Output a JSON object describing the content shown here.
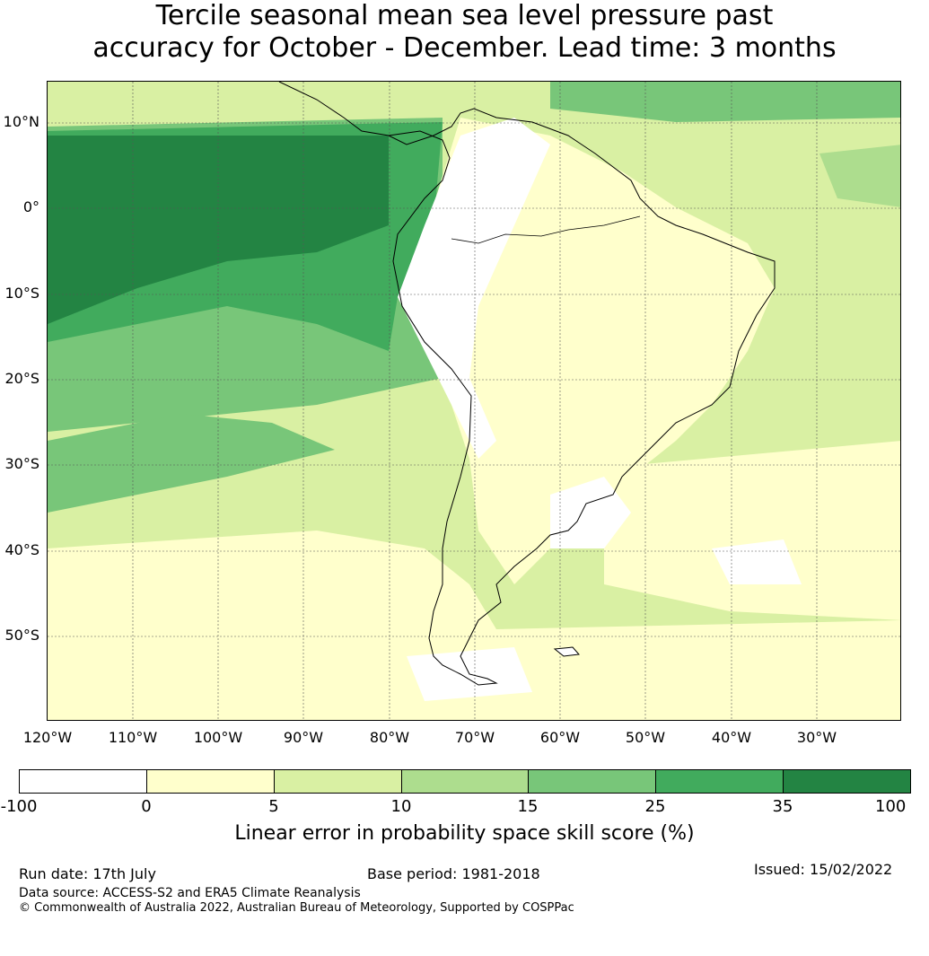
{
  "title": {
    "line1": "Tercile seasonal mean sea level pressure past",
    "line2": "accuracy for October - December. Lead time: 3 months"
  },
  "map": {
    "lat_labels": [
      "10°N",
      "0°",
      "10°S",
      "20°S",
      "30°S",
      "40°S",
      "50°S"
    ],
    "lon_labels": [
      "120°W",
      "110°W",
      "100°W",
      "90°W",
      "80°W",
      "70°W",
      "60°W",
      "50°W",
      "40°W",
      "30°W"
    ],
    "land_icon": "coastline-outline"
  },
  "colorbar": {
    "ticks": [
      "-100",
      "0",
      "5",
      "10",
      "15",
      "25",
      "35",
      "100"
    ],
    "colors": [
      "#ffffff",
      "#ffffcc",
      "#d9f0a3",
      "#addd8e",
      "#78c679",
      "#41ab5d",
      "#238443"
    ],
    "label": "Linear error in probability space skill score (%)"
  },
  "footer": {
    "run_date": "Run date: 17th July",
    "base_period": "Base period: 1981-2018",
    "issued": "Issued: 15/02/2022",
    "data_source": "Data source: ACCESS-S2 and ERA5 Climate Reanalysis",
    "copyright": "© Commonwealth of Australia 2022, Australian Bureau of Meteorology, Supported by COSPPac"
  }
}
